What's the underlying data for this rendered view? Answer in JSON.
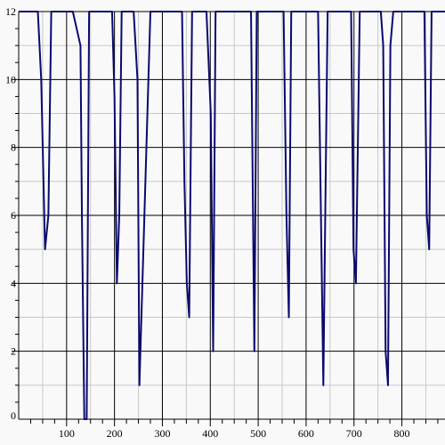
{
  "chart_data": {
    "type": "line",
    "title": "",
    "xlabel": "",
    "ylabel": "",
    "xlim": [
      0,
      890
    ],
    "ylim": [
      0,
      12
    ],
    "grid": true,
    "legend": "none",
    "x_major_ticks": [
      100,
      200,
      300,
      400,
      500,
      600,
      700,
      800
    ],
    "y_major_ticks": [
      0,
      2,
      4,
      6,
      8,
      10,
      12
    ],
    "x_tick_labels": [
      "100",
      "200",
      "300",
      "400",
      "500",
      "600",
      "700",
      "800"
    ],
    "y_tick_labels": [
      "0",
      "2",
      "4",
      "6",
      "8",
      "10",
      "12"
    ],
    "colors": {
      "line": "#0a0a6e",
      "major_grid": "#000000",
      "minor_grid": "#c8c8c8",
      "background": "#f9f9f9"
    },
    "series": [
      {
        "x": [
          0,
          40,
          47,
          55,
          62,
          68,
          75,
          80,
          105,
          113,
          121,
          129,
          132,
          137,
          142,
          147,
          150,
          155,
          190,
          195,
          200,
          205,
          210,
          215,
          217,
          240,
          244,
          248,
          252,
          275,
          281,
          286,
          292,
          302,
          336,
          341,
          346,
          351,
          356,
          362,
          385,
          392,
          401,
          406,
          411,
          420,
          430,
          440,
          479,
          485,
          492,
          497,
          502,
          510,
          548,
          553,
          559,
          564,
          569,
          573,
          620,
          625,
          630,
          636,
          640,
          645,
          650,
          690,
          694,
          699,
          704,
          708,
          712,
          716,
          750,
          756,
          761,
          766,
          771,
          776,
          782,
          787,
          793,
          800,
          820,
          847,
          852,
          857,
          862,
          866,
          890
        ],
        "y": [
          12,
          12,
          10,
          5,
          6,
          12,
          12,
          12,
          12,
          12,
          11.5,
          11,
          6,
          0,
          0,
          12,
          12,
          12,
          12,
          12,
          9.5,
          4,
          6,
          12,
          12,
          12,
          11,
          10,
          1,
          12,
          12,
          12,
          12,
          12,
          12,
          12,
          7,
          4,
          3,
          12,
          12,
          12,
          9,
          2,
          12,
          12,
          12,
          12,
          12,
          12,
          2,
          12,
          12,
          12,
          12,
          12,
          6,
          3,
          12,
          12,
          12,
          12,
          7,
          1,
          6,
          12,
          12,
          12,
          12,
          5,
          4,
          8,
          12,
          12,
          12,
          12,
          11,
          2,
          1,
          11,
          12,
          12,
          12,
          12,
          12,
          12,
          6,
          5,
          12,
          12,
          12
        ]
      }
    ]
  }
}
